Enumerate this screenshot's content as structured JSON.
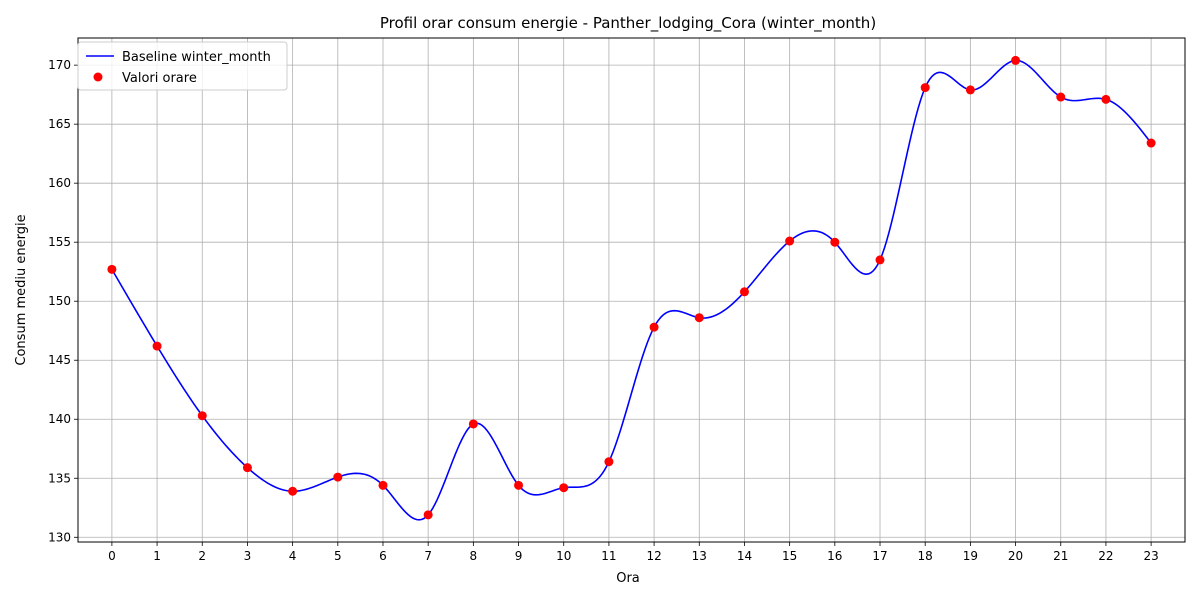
{
  "chart_data": {
    "type": "line",
    "title": "Profil orar consum energie - Panther_lodging_Cora (winter_month)",
    "xlabel": "Ora",
    "ylabel": "Consum mediu energie",
    "x": [
      0,
      1,
      2,
      3,
      4,
      5,
      6,
      7,
      8,
      9,
      10,
      11,
      12,
      13,
      14,
      15,
      16,
      17,
      18,
      19,
      20,
      21,
      22,
      23
    ],
    "xticks": [
      "0",
      "1",
      "2",
      "3",
      "4",
      "5",
      "6",
      "7",
      "8",
      "9",
      "10",
      "11",
      "12",
      "13",
      "14",
      "15",
      "16",
      "17",
      "18",
      "19",
      "20",
      "21",
      "22",
      "23"
    ],
    "yticks": [
      "130",
      "135",
      "140",
      "145",
      "150",
      "155",
      "160",
      "165",
      "170"
    ],
    "xlim": [
      -0.75,
      23.75
    ],
    "ylim": [
      129.6,
      172.3
    ],
    "grid": true,
    "legend_position": "top-left",
    "series": [
      {
        "name": "Baseline winter_month",
        "kind": "line",
        "color": "#0000ff",
        "values": [
          152.7,
          146.2,
          140.3,
          135.9,
          133.9,
          135.1,
          134.4,
          131.9,
          139.6,
          134.4,
          134.2,
          136.4,
          147.8,
          148.6,
          150.8,
          155.1,
          155.0,
          153.5,
          168.1,
          167.9,
          170.4,
          167.3,
          167.1,
          163.4
        ]
      },
      {
        "name": "Valori orare",
        "kind": "scatter",
        "color": "#ff0000",
        "values": [
          152.7,
          146.2,
          140.3,
          135.9,
          133.9,
          135.1,
          134.4,
          131.9,
          139.6,
          134.4,
          134.2,
          136.4,
          147.8,
          148.6,
          150.8,
          155.1,
          155.0,
          153.5,
          168.1,
          167.9,
          170.4,
          167.3,
          167.1,
          163.4
        ]
      }
    ]
  }
}
